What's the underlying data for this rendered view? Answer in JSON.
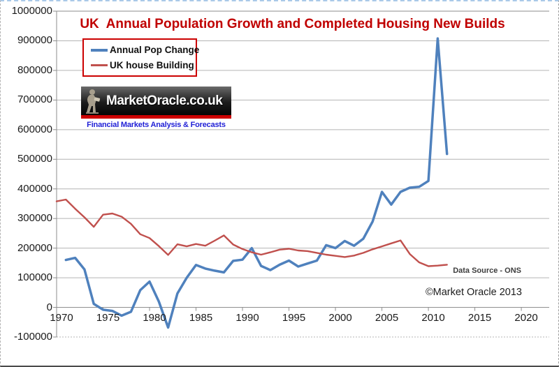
{
  "title": "UK  Annual Population Growth and Completed Housing New Builds",
  "colors": {
    "title": "#c00000",
    "pop_line": "#4f81bd",
    "house_line": "#c0504d",
    "legend_border": "#cc0000",
    "logo_stripe": "#cc0000",
    "logo_text_color": "#ffffff",
    "tagline_color": "#1f1fd6",
    "gridline": "#b4b4b4",
    "axis_line": "#8e8e8e"
  },
  "legend": {
    "items": [
      {
        "label": "Annual Pop Change",
        "color": "#4f81bd"
      },
      {
        "label": "UK house Building",
        "color": "#c0504d"
      }
    ]
  },
  "logo": {
    "text": "MarketOracle.co.uk",
    "tagline": "Financial Markets Analysis & Forecasts",
    "figure_icon": "seated-oracle-figure"
  },
  "annotations": {
    "data_source": "Data Source - ONS",
    "copyright": "©Market Oracle 2013"
  },
  "axes": {
    "y": {
      "ticks": [
        1000000,
        900000,
        800000,
        700000,
        600000,
        500000,
        400000,
        300000,
        200000,
        100000,
        0,
        -100000
      ],
      "labels": [
        "1000000",
        "900000",
        "800000",
        "700000",
        "600000",
        "500000",
        "400000",
        "300000",
        "200000",
        "100000",
        "0",
        "-100000"
      ]
    },
    "x": {
      "ticks": [
        1970,
        1975,
        1980,
        1985,
        1990,
        1995,
        2000,
        2005,
        2010,
        2015,
        2020
      ],
      "labels": [
        "1970",
        "1975",
        "1980",
        "1985",
        "1990",
        "1995",
        "2000",
        "2005",
        "2010",
        "2015",
        "2020"
      ]
    }
  },
  "chart_data": {
    "type": "line",
    "title": "UK  Annual Population Growth and Completed Housing New Builds",
    "xlabel": "",
    "ylabel": "",
    "xlim": [
      1970,
      2023
    ],
    "ylim": [
      -100000,
      1000000
    ],
    "grid": true,
    "legend_position": "top-left",
    "series": [
      {
        "name": "Annual Pop Change",
        "id": "annual-pop-change-line",
        "color": "#4f81bd",
        "stroke_width": 3.5,
        "x": [
          1971,
          1972,
          1973,
          1974,
          1975,
          1976,
          1977,
          1978,
          1979,
          1980,
          1981,
          1982,
          1983,
          1984,
          1985,
          1986,
          1987,
          1988,
          1989,
          1990,
          1991,
          1992,
          1993,
          1994,
          1995,
          1996,
          1997,
          1998,
          1999,
          2000,
          2001,
          2002,
          2003,
          2004,
          2005,
          2006,
          2007,
          2008,
          2009,
          2010,
          2011,
          2012
        ],
        "values": [
          160000,
          167000,
          128000,
          12000,
          -8000,
          -12000,
          -28000,
          -15000,
          58000,
          87000,
          20000,
          -68000,
          47000,
          100000,
          143000,
          131000,
          124000,
          118000,
          157000,
          161000,
          200000,
          140000,
          126000,
          144000,
          158000,
          138000,
          148000,
          158000,
          210000,
          200000,
          224000,
          208000,
          232000,
          290000,
          390000,
          347000,
          390000,
          404000,
          407000,
          427000,
          908000,
          518000
        ]
      },
      {
        "name": "UK house Building",
        "id": "uk-house-building-line",
        "color": "#c0504d",
        "stroke_width": 2.4,
        "x": [
          1970,
          1971,
          1972,
          1973,
          1974,
          1975,
          1976,
          1977,
          1978,
          1979,
          1980,
          1981,
          1982,
          1983,
          1984,
          1985,
          1986,
          1987,
          1988,
          1989,
          1990,
          1991,
          1992,
          1993,
          1994,
          1995,
          1996,
          1997,
          1998,
          1999,
          2000,
          2001,
          2002,
          2003,
          2004,
          2005,
          2006,
          2007,
          2008,
          2009,
          2010,
          2011,
          2012
        ],
        "values": [
          358000,
          364000,
          333000,
          304000,
          272000,
          313000,
          317000,
          306000,
          282000,
          247000,
          234000,
          207000,
          177000,
          213000,
          206000,
          214000,
          208000,
          225000,
          243000,
          212000,
          197000,
          186000,
          178000,
          186000,
          195000,
          198000,
          192000,
          190000,
          184000,
          178000,
          174000,
          170000,
          175000,
          184000,
          196000,
          206000,
          216000,
          226000,
          180000,
          152000,
          139000,
          141000,
          144000
        ]
      }
    ]
  }
}
